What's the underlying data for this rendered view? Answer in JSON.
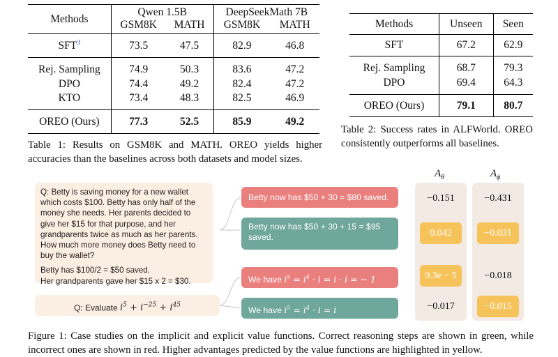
{
  "table1": {
    "header_methods": "Methods",
    "groups": [
      "Qwen 1.5B",
      "DeepSeekMath 7B"
    ],
    "datasets": [
      "GSM8K",
      "MATH",
      "GSM8K",
      "MATH"
    ],
    "rows": [
      {
        "method": "SFT",
        "sup": "3",
        "values": [
          "73.5",
          "47.5",
          "82.9",
          "46.8"
        ]
      },
      {
        "method": "Rej. Sampling",
        "values": [
          "74.9",
          "50.3",
          "83.6",
          "47.2"
        ]
      },
      {
        "method": "DPO",
        "values": [
          "74.4",
          "49.2",
          "82.4",
          "47.2"
        ]
      },
      {
        "method": "KTO",
        "values": [
          "73.4",
          "48.3",
          "82.5",
          "46.9"
        ]
      },
      {
        "method": "OREO (Ours)",
        "values": [
          "77.3",
          "52.5",
          "85.9",
          "49.2"
        ]
      }
    ],
    "caption_label": "Table 1:",
    "caption": "Results on GSM8K and MATH. OREO yields higher accuracies than the baselines across both datasets and model sizes."
  },
  "table2": {
    "headers": [
      "Methods",
      "Unseen",
      "Seen"
    ],
    "rows": [
      {
        "method": "SFT",
        "values": [
          "67.2",
          "62.9"
        ]
      },
      {
        "method": "Rej. Sampling",
        "values": [
          "68.7",
          "79.3"
        ]
      },
      {
        "method": "DPO",
        "values": [
          "69.4",
          "64.3"
        ]
      },
      {
        "method": "OREO (Ours)",
        "values": [
          "79.1",
          "80.7"
        ]
      }
    ],
    "caption_label": "Table 2:",
    "caption": "Success rates in ALFWorld. OREO consistently outperforms all baselines."
  },
  "figure": {
    "question1": "Q: Betty is saving money for a new wallet which costs $100. Betty has only half of the money she needs. Her parents decided to give her $15 for that purpose, and her grandparents twice as much as her parents. How much more money does Betty need to buy the wallet?",
    "context1_line1": "Betty has $100/2 = $50 saved.",
    "context1_line2": "Her grandparents gave her $15 x 2 = $30.",
    "question2": "Q: Evaluate",
    "steps": [
      {
        "text": "Betty now has $50 + 30 = $80 saved.",
        "status": "incorrect",
        "color": "#ea807d"
      },
      {
        "text": "Betty now has $50 + 30 + 15 = $95 saved.",
        "status": "correct",
        "color": "#70a79c"
      },
      {
        "text": "We have",
        "status": "incorrect",
        "color": "#ea807d"
      },
      {
        "text": "We have",
        "status": "correct",
        "color": "#70a79c"
      }
    ],
    "a_theta_label": "A",
    "a_phi_label": "A",
    "a_theta": [
      "−0.151",
      "0.042",
      "9.3e − 5",
      "−0.017"
    ],
    "a_phi": [
      "−0.431",
      "−0.031",
      "−0.018",
      "−0.015"
    ],
    "highlight_color": "#f6c35a",
    "caption_label": "Figure 1:",
    "caption": "Case studies on the implicit and explicit value functions. Correct reasoning steps are shown in green, while incorrect ones are shown in red. Higher advantages predicted by the value functions are highlighted in yellow."
  }
}
